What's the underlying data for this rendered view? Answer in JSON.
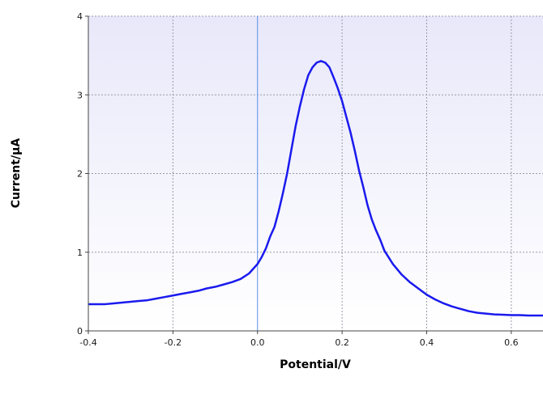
{
  "chart_data": {
    "type": "line",
    "title": "",
    "xlabel": "Potential/V",
    "ylabel": "Current/μA",
    "xlim": [
      -0.4,
      0.675
    ],
    "ylim": [
      0,
      4
    ],
    "x_ticks": [
      -0.4,
      -0.2,
      0.0,
      0.2,
      0.4,
      0.6
    ],
    "x_tick_labels": [
      "-0.4",
      "-0.2",
      "0.0",
      "0.2",
      "0.4",
      "0.6"
    ],
    "y_ticks": [
      0,
      1,
      2,
      3,
      4
    ],
    "y_tick_labels": [
      "0",
      "1",
      "2",
      "3",
      "4"
    ],
    "grid": true,
    "vertical_reference_line_x": 0.0,
    "colors": {
      "series": "#1a1aee",
      "plot_background_top": "#e8e8fa",
      "plot_background_bottom": "#ffffff",
      "grid": "#9a9aa8",
      "reference_line": "#5b8ee8",
      "axis": "#444444"
    },
    "series": [
      {
        "x": [
          -0.4,
          -0.38,
          -0.36,
          -0.34,
          -0.32,
          -0.3,
          -0.28,
          -0.26,
          -0.24,
          -0.22,
          -0.2,
          -0.18,
          -0.16,
          -0.14,
          -0.12,
          -0.1,
          -0.08,
          -0.06,
          -0.04,
          -0.02,
          0.0,
          0.01,
          0.02,
          0.03,
          0.04,
          0.05,
          0.06,
          0.07,
          0.08,
          0.09,
          0.1,
          0.11,
          0.12,
          0.13,
          0.14,
          0.15,
          0.16,
          0.17,
          0.18,
          0.19,
          0.2,
          0.21,
          0.22,
          0.23,
          0.24,
          0.25,
          0.26,
          0.27,
          0.28,
          0.29,
          0.3,
          0.32,
          0.34,
          0.36,
          0.38,
          0.4,
          0.42,
          0.44,
          0.46,
          0.48,
          0.5,
          0.52,
          0.54,
          0.56,
          0.58,
          0.6,
          0.62,
          0.64,
          0.66,
          0.675
        ],
        "y": [
          0.34,
          0.34,
          0.34,
          0.35,
          0.36,
          0.37,
          0.38,
          0.39,
          0.41,
          0.43,
          0.45,
          0.47,
          0.49,
          0.51,
          0.54,
          0.56,
          0.59,
          0.62,
          0.66,
          0.73,
          0.85,
          0.94,
          1.05,
          1.2,
          1.32,
          1.52,
          1.75,
          2.0,
          2.3,
          2.6,
          2.85,
          3.07,
          3.25,
          3.35,
          3.41,
          3.43,
          3.41,
          3.35,
          3.22,
          3.08,
          2.92,
          2.72,
          2.52,
          2.29,
          2.04,
          1.83,
          1.6,
          1.42,
          1.28,
          1.16,
          1.02,
          0.85,
          0.72,
          0.62,
          0.54,
          0.46,
          0.4,
          0.35,
          0.31,
          0.28,
          0.25,
          0.23,
          0.22,
          0.21,
          0.205,
          0.2,
          0.2,
          0.195,
          0.195,
          0.195
        ]
      }
    ]
  }
}
